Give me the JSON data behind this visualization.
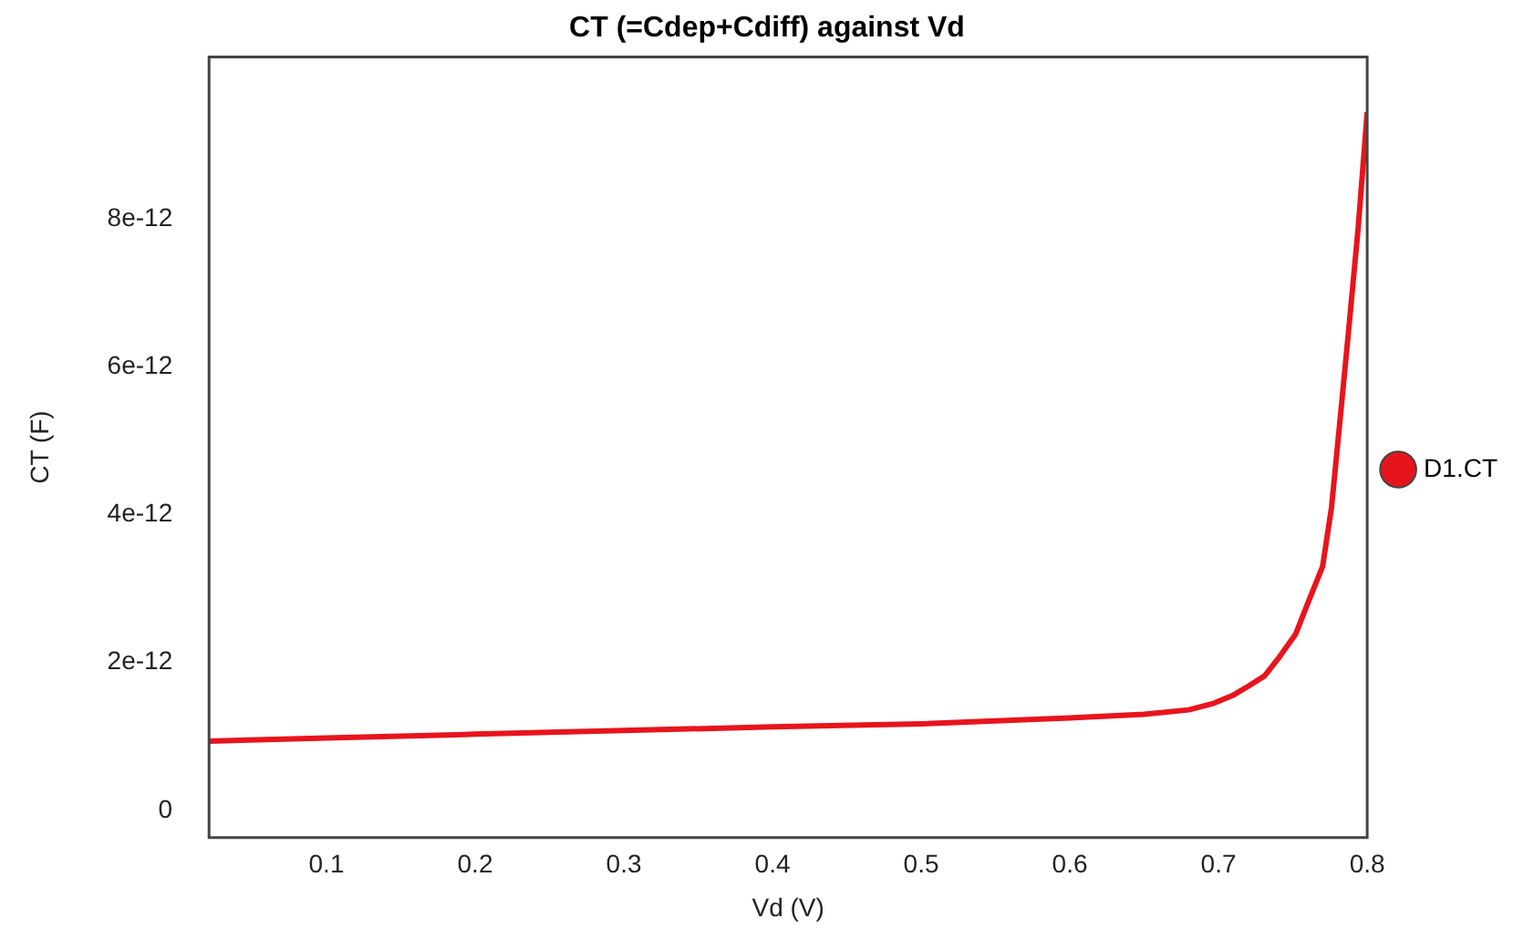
{
  "chart_data": {
    "type": "line",
    "title": "CT (=Cdep+Cdiff) against Vd",
    "xlabel": "Vd (V)",
    "ylabel": "CT (F)",
    "xlim": [
      0.021,
      0.8
    ],
    "xticks": [
      0.1,
      0.2,
      0.3,
      0.4,
      0.5,
      0.6,
      0.7,
      0.8
    ],
    "ylim": [
      -3.7e-13,
      1.02e-11
    ],
    "yticks": [
      0,
      {
        "value": 2e-12,
        "label": "2e-12"
      },
      {
        "value": 4e-12,
        "label": "4e-12"
      },
      {
        "value": 6e-12,
        "label": "6e-12"
      },
      {
        "value": 8e-12,
        "label": "8e-12"
      }
    ],
    "grid": false,
    "legend": "right",
    "marker": "none",
    "line_style": "solid",
    "series": [
      {
        "name": "D1.CT",
        "color": "#e8141c",
        "x": [
          0.021,
          0.1,
          0.2,
          0.3,
          0.4,
          0.5,
          0.6,
          0.65,
          0.68,
          0.697,
          0.71,
          0.72,
          0.731,
          0.74,
          0.752,
          0.76,
          0.77,
          0.776,
          0.782,
          0.788,
          0.794,
          0.8
        ],
        "values": [
          9.35e-13,
          9.8e-13,
          1.03e-12,
          1.08e-12,
          1.13e-12,
          1.17e-12,
          1.25e-12,
          1.3e-12,
          1.36e-12,
          1.45e-12,
          1.56e-12,
          1.68e-12,
          1.82e-12,
          2.05e-12,
          2.39e-12,
          2.8e-12,
          3.3e-12,
          4.1e-12,
          5.34e-12,
          6.6e-12,
          7.9e-12,
          9.45e-12
        ]
      }
    ]
  }
}
